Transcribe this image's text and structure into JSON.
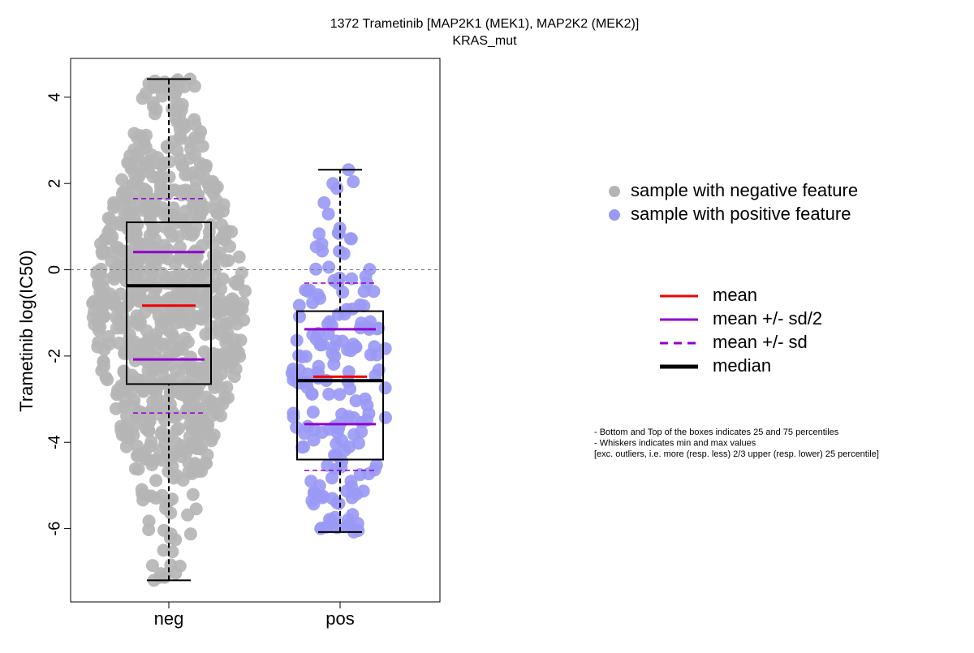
{
  "chart_data": {
    "type": "scatter",
    "title": "1372 Trametinib [MAP2K1 (MEK1), MAP2K2 (MEK2)]",
    "subtitle": "KRAS_mut",
    "xlabel": "",
    "ylabel": "Trametinib log(IC50)",
    "categories": [
      "neg",
      "pos"
    ],
    "y_ticks": [
      -6,
      -4,
      -2,
      0,
      2,
      4
    ],
    "ylim": [
      -7.7,
      4.9
    ],
    "reference_line": 0,
    "colors": {
      "neg_points": "#b5b5b5",
      "pos_points": "#9a9af5",
      "mean": "#ee0000",
      "sd": "#8f00cc",
      "median": "#000000",
      "reference": "#777777"
    },
    "series": [
      {
        "name": "neg",
        "color": "#b5b5b5",
        "n_points_approx": 900,
        "min": -7.2,
        "q1": -2.65,
        "median": -0.37,
        "q3": 1.1,
        "max": 4.42,
        "mean": -0.83,
        "mean_minus_half_sd": -2.08,
        "mean_plus_half_sd": 0.41,
        "mean_minus_sd": -3.32,
        "mean_plus_sd": 1.65,
        "whisker_low": -7.2,
        "whisker_high": 4.42
      },
      {
        "name": "pos",
        "color": "#9a9af5",
        "n_points_approx": 180,
        "min": -6.08,
        "q1": -4.4,
        "median": -2.57,
        "q3": -0.96,
        "max": 2.32,
        "mean": -2.48,
        "mean_minus_half_sd": -3.58,
        "mean_plus_half_sd": -1.38,
        "mean_minus_sd": -4.65,
        "mean_plus_sd": -0.31,
        "whisker_low": -6.08,
        "whisker_high": 2.32
      }
    ],
    "legend_points": {
      "placement": "right",
      "entries": [
        {
          "label": "sample with negative feature",
          "color": "#b5b5b5"
        },
        {
          "label": "sample with positive feature",
          "color": "#9a9af5"
        }
      ]
    },
    "legend_lines": {
      "placement": "right",
      "entries": [
        {
          "label": "mean",
          "color": "#ee0000",
          "style": "solid"
        },
        {
          "label": "mean +/- sd/2",
          "color": "#8f00cc",
          "style": "solid"
        },
        {
          "label": "mean +/- sd",
          "color": "#8f00cc",
          "style": "dashed"
        },
        {
          "label": "median",
          "color": "#000000",
          "style": "solid-thick"
        }
      ]
    },
    "notes": [
      "- Bottom and Top of the boxes indicates 25 and 75 percentiles",
      "- Whiskers indicates min and max values",
      "[exc. outliers, i.e. more (resp. less) 2/3 upper (resp. lower) 25 percentile]"
    ]
  }
}
